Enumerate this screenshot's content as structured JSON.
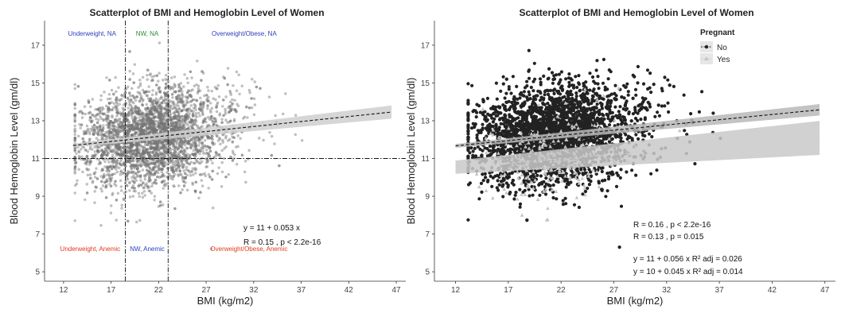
{
  "chart_data": [
    {
      "type": "scatter",
      "title": "Scatterplot of BMI and Hemoglobin Level of Women",
      "xlabel": "BMI (kg/m2)",
      "ylabel": "Blood Hemoglobin Level (gm/dl)",
      "xlim": [
        10,
        48
      ],
      "ylim": [
        4.5,
        18.3
      ],
      "x_ticks": [
        12,
        17,
        22,
        27,
        32,
        37,
        42,
        47
      ],
      "y_ticks": [
        5,
        7,
        9,
        11,
        13,
        15,
        17
      ],
      "grid": false,
      "point_color": "#7a7a7a",
      "vlines": [
        18.5,
        23
      ],
      "hline": 11,
      "regions": [
        {
          "label": "Underweight, NA",
          "x": 15,
          "y": 17.5,
          "color": "#2b3fbf"
        },
        {
          "label": "NW, NA",
          "x": 20.8,
          "y": 17.5,
          "color": "#2e8b2e"
        },
        {
          "label": "Overweight/Obese, NA",
          "x": 31,
          "y": 17.5,
          "color": "#2b3fbf"
        },
        {
          "label": "Underweight, Anemic",
          "x": 14.8,
          "y": 6.1,
          "color": "#e03a1e"
        },
        {
          "label": "NW, Anemic",
          "x": 20.8,
          "y": 6.1,
          "color": "#2b3fbf"
        },
        {
          "label": "Overweight/Obese, Anemic",
          "x": 31.5,
          "y": 6.1,
          "color": "#e03a1e"
        }
      ],
      "fit": {
        "x": [
          13,
          46.5
        ],
        "y": [
          11.69,
          13.46
        ],
        "band": [
          0.1,
          0.35
        ]
      },
      "stat_lines": [
        "y = 11 + 0.053 x",
        "R = 0.15 , p < 2.2e-16"
      ]
    },
    {
      "type": "scatter",
      "title": "Scatterplot of BMI and Hemoglobin Level of Women",
      "xlabel": "BMI (kg/m2)",
      "ylabel": "Blood Hemoglobin Level (gm/dl)",
      "xlim": [
        10,
        48
      ],
      "ylim": [
        4.5,
        18.3
      ],
      "x_ticks": [
        12,
        17,
        22,
        27,
        32,
        37,
        42,
        47
      ],
      "y_ticks": [
        5,
        7,
        9,
        11,
        13,
        15,
        17
      ],
      "grid": false,
      "legend": {
        "title": "Pregnant",
        "position": "top-right"
      },
      "series": [
        {
          "name": "No",
          "color": "#222222",
          "fit": {
            "x": [
              12,
              46.5
            ],
            "y": [
              11.67,
              13.58
            ],
            "band": [
              0.1,
              0.3
            ]
          }
        },
        {
          "name": "Yes",
          "color": "#c4c4c4",
          "fit": {
            "x": [
              12,
              46.5
            ],
            "y": [
              10.54,
              12.09
            ],
            "band": [
              0.35,
              0.9
            ]
          }
        }
      ],
      "stat_lines": [
        {
          "text": "R = 0.16 , p < 2.2e-16",
          "color": "#333333"
        },
        {
          "text": "R = 0.13 , p = 0.015",
          "color": "#c4c4c4"
        },
        {
          "text": "y = 11 + 0.056 x   R² adj = 0.026",
          "color": "#111111"
        },
        {
          "text": "y = 10 + 0.045 x   R² adj = 0.014",
          "color": "#c4c4c4"
        }
      ]
    }
  ]
}
